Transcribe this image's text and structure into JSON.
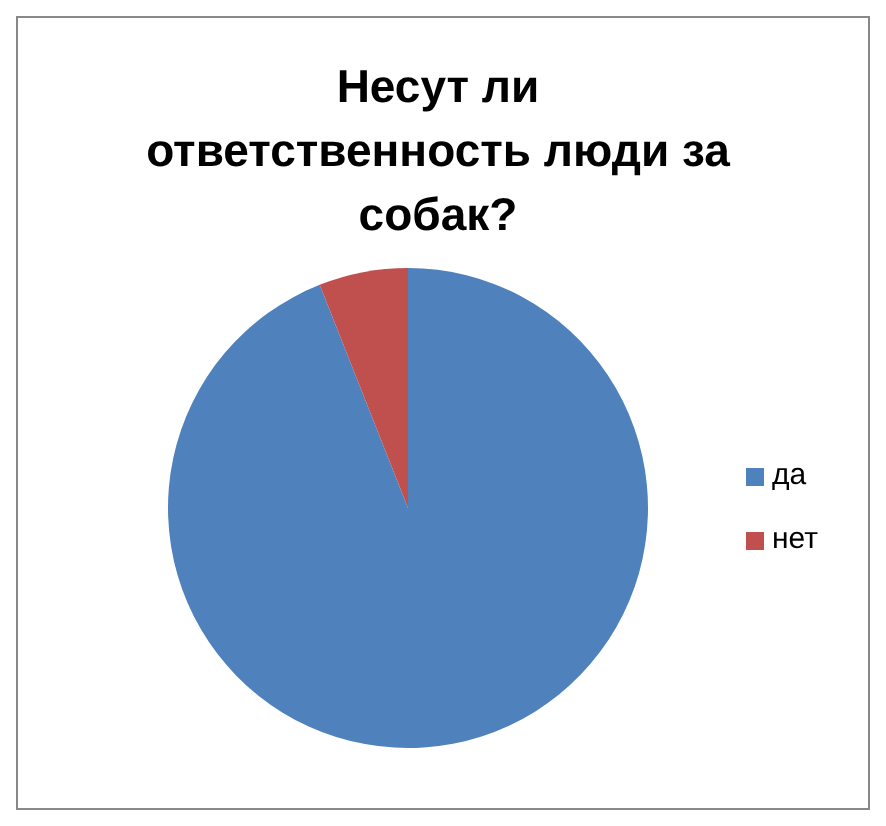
{
  "chart_data": {
    "type": "pie",
    "title": "Несут ли ответственность люди за собак?",
    "categories": [
      "да",
      "нет"
    ],
    "values": [
      94,
      6
    ],
    "colors": [
      "#4f81bd",
      "#c0504d"
    ],
    "legend": "right"
  }
}
